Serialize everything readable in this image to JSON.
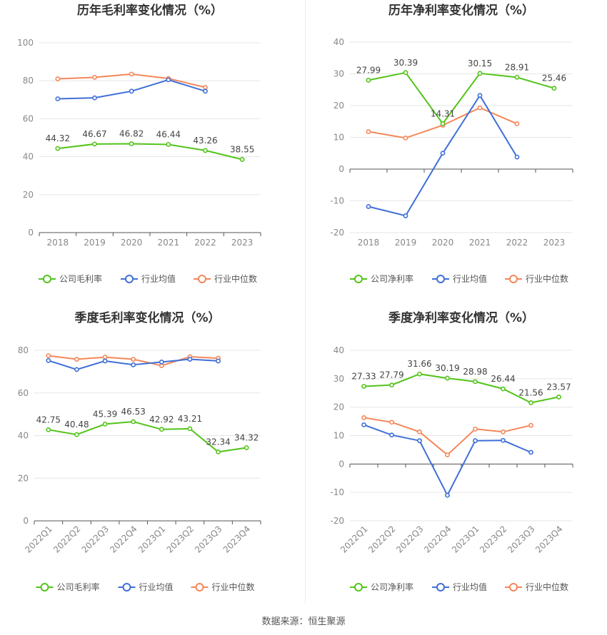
{
  "chart_data": [
    {
      "type": "line",
      "title": "历年毛利率变化情况（%）",
      "categories": [
        "2018",
        "2019",
        "2020",
        "2021",
        "2022",
        "2023"
      ],
      "ylim": [
        0,
        100
      ],
      "yticks": [
        0,
        20,
        40,
        60,
        80,
        100
      ],
      "grid": true,
      "legend_position": "bottom",
      "series": [
        {
          "name": "公司毛利率",
          "color": "#52c41a",
          "values": [
            44.32,
            46.67,
            46.82,
            46.44,
            43.26,
            38.55
          ],
          "labels": true
        },
        {
          "name": "行业均值",
          "color": "#3f6fd8",
          "values": [
            70.5,
            71.0,
            74.5,
            80.5,
            74.5,
            null
          ],
          "labels": false
        },
        {
          "name": "行业中位数",
          "color": "#f4875a",
          "values": [
            81.0,
            81.8,
            83.5,
            81.2,
            76.5,
            null
          ],
          "labels": false
        }
      ]
    },
    {
      "type": "line",
      "title": "历年净利率变化情况（%）",
      "categories": [
        "2018",
        "2019",
        "2020",
        "2021",
        "2022",
        "2023"
      ],
      "ylim": [
        -20,
        40
      ],
      "yticks": [
        -20,
        -10,
        0,
        10,
        20,
        30,
        40
      ],
      "grid": true,
      "legend_position": "bottom",
      "series": [
        {
          "name": "公司净利率",
          "color": "#52c41a",
          "values": [
            27.99,
            30.39,
            14.31,
            30.15,
            28.91,
            25.46
          ],
          "labels": true
        },
        {
          "name": "行业均值",
          "color": "#3f6fd8",
          "values": [
            -11.8,
            -14.7,
            5.0,
            23.2,
            3.8,
            null
          ],
          "labels": false
        },
        {
          "name": "行业中位数",
          "color": "#f4875a",
          "values": [
            11.8,
            9.8,
            13.8,
            19.3,
            14.3,
            null
          ],
          "labels": false
        }
      ]
    },
    {
      "type": "line",
      "title": "季度毛利率变化情况（%）",
      "categories": [
        "2022Q1",
        "2022Q2",
        "2022Q3",
        "2022Q4",
        "2023Q1",
        "2023Q2",
        "2023Q3",
        "2023Q4"
      ],
      "ylim": [
        0,
        80
      ],
      "yticks": [
        0,
        20,
        40,
        60,
        80
      ],
      "grid": true,
      "legend_position": "bottom",
      "series": [
        {
          "name": "公司毛利率",
          "color": "#52c41a",
          "values": [
            42.75,
            40.48,
            45.39,
            46.53,
            42.92,
            43.21,
            32.34,
            34.32
          ],
          "labels": true
        },
        {
          "name": "行业均值",
          "color": "#3f6fd8",
          "values": [
            75.2,
            71.0,
            75.0,
            73.2,
            74.5,
            75.8,
            75.0,
            null
          ],
          "labels": false
        },
        {
          "name": "行业中位数",
          "color": "#f4875a",
          "values": [
            77.5,
            75.8,
            76.8,
            75.8,
            72.8,
            77.0,
            76.3,
            null
          ],
          "labels": false
        }
      ]
    },
    {
      "type": "line",
      "title": "季度净利率变化情况（%）",
      "categories": [
        "2022Q1",
        "2022Q2",
        "2022Q3",
        "2022Q4",
        "2023Q1",
        "2023Q2",
        "2023Q3",
        "2023Q4"
      ],
      "ylim": [
        -20,
        40
      ],
      "yticks": [
        -20,
        -10,
        0,
        10,
        20,
        30,
        40
      ],
      "grid": true,
      "legend_position": "bottom",
      "series": [
        {
          "name": "公司净利率",
          "color": "#52c41a",
          "values": [
            27.33,
            27.79,
            31.66,
            30.19,
            28.98,
            26.44,
            21.56,
            23.57
          ],
          "labels": true
        },
        {
          "name": "行业均值",
          "color": "#3f6fd8",
          "values": [
            13.8,
            10.2,
            8.2,
            -11.0,
            8.2,
            8.3,
            4.1,
            null
          ],
          "labels": false
        },
        {
          "name": "行业中位数",
          "color": "#f4875a",
          "values": [
            16.3,
            14.7,
            11.3,
            3.2,
            12.3,
            11.3,
            13.6,
            null
          ],
          "labels": false
        }
      ]
    }
  ],
  "footer": {
    "source_text": "数据来源：恒生聚源"
  }
}
